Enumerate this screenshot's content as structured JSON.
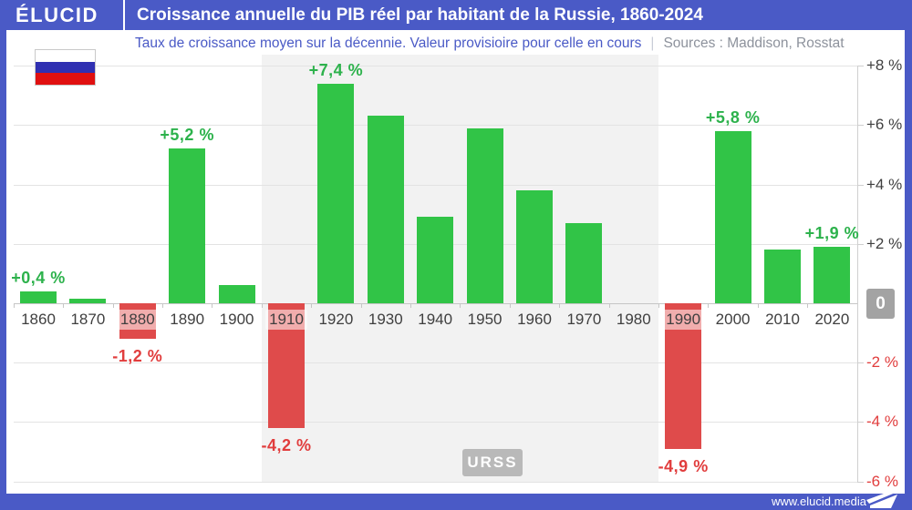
{
  "header": {
    "logo": "ÉLUCID",
    "title": "Croissance annuelle du PIB réel par habitant de la Russie, 1860-2024",
    "subtitle": "Taux de croissance moyen sur la décennie. Valeur provisioire pour celle en cours",
    "separator": "|",
    "sources": "Sources : Maddison, Rosstat"
  },
  "flag": {
    "country": "Russie",
    "stripes": [
      "#ffffff",
      "#3030b2",
      "#e01010"
    ]
  },
  "footer": {
    "url": "www.elucid.media"
  },
  "colors": {
    "accent_blue": "#4a5ac6",
    "positive_bar": "#31c447",
    "positive_text": "#2db24c",
    "negative_bar": "#df4b4b",
    "negative_text": "#e13d3d",
    "axis_text": "#3f3f3f",
    "band_bg": "#f2f2f2",
    "band_label_bg": "#b9b9b9",
    "zero_badge_bg": "#a3a3a3"
  },
  "chart_data": {
    "type": "bar",
    "title": "Croissance annuelle du PIB réel par habitant de la Russie, 1860-2024",
    "xlabel": "",
    "ylabel": "",
    "unit": "%",
    "categories": [
      "1860",
      "1870",
      "1880",
      "1890",
      "1900",
      "1910",
      "1920",
      "1930",
      "1940",
      "1950",
      "1960",
      "1970",
      "1980",
      "1990",
      "2000",
      "2010",
      "2020"
    ],
    "values": [
      0.4,
      0.15,
      -1.2,
      5.2,
      0.6,
      -4.2,
      7.4,
      6.3,
      2.9,
      5.9,
      3.8,
      2.7,
      0,
      -4.9,
      5.8,
      1.8,
      1.9
    ],
    "value_labels": [
      "+0,4 %",
      "",
      "-1,2 %",
      "+5,2 %",
      "",
      "-4,2 %",
      "+7,4 %",
      "",
      "",
      "",
      "",
      "",
      "",
      "-4,9 %",
      "+5,8 %",
      "",
      "+1,9 %"
    ],
    "ylim": [
      -6,
      8
    ],
    "grid": true,
    "legend_position": "none",
    "yticks": [
      {
        "value": 8,
        "label": "+8 %"
      },
      {
        "value": 6,
        "label": "+6 %"
      },
      {
        "value": 4,
        "label": "+4 %"
      },
      {
        "value": 2,
        "label": "+2 %"
      },
      {
        "value": 0,
        "label": "0",
        "badge": true
      },
      {
        "value": -2,
        "label": "-2 %"
      },
      {
        "value": -4,
        "label": "-4 %"
      },
      {
        "value": -6,
        "label": "-6 %"
      }
    ],
    "band": {
      "label": "URSS",
      "from_category_index": 5,
      "to_category_index": 12
    }
  }
}
